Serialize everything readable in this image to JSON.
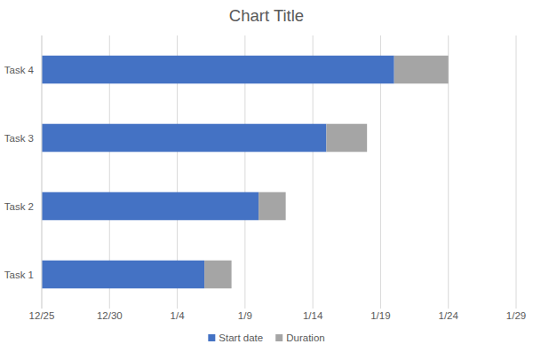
{
  "chart_data": {
    "type": "bar",
    "title": "Chart Title",
    "orientation": "horizontal",
    "stacked": true,
    "categories": [
      "Task 1",
      "Task 2",
      "Task 3",
      "Task 4"
    ],
    "series": [
      {
        "name": "Start date",
        "color": "#4472c4",
        "values": [
          12,
          16,
          21,
          26
        ]
      },
      {
        "name": "Duration",
        "color": "#a5a5a5",
        "values": [
          2,
          2,
          3,
          4
        ]
      }
    ],
    "xlim": [
      0,
      35
    ],
    "xticks": [
      {
        "value": 0,
        "label": "12/25"
      },
      {
        "value": 5,
        "label": "12/30"
      },
      {
        "value": 10,
        "label": "1/4"
      },
      {
        "value": 15,
        "label": "1/9"
      },
      {
        "value": 20,
        "label": "1/14"
      },
      {
        "value": 25,
        "label": "1/19"
      },
      {
        "value": 30,
        "label": "1/24"
      },
      {
        "value": 35,
        "label": "1/29"
      }
    ],
    "grid": true,
    "legend": "bottom"
  }
}
